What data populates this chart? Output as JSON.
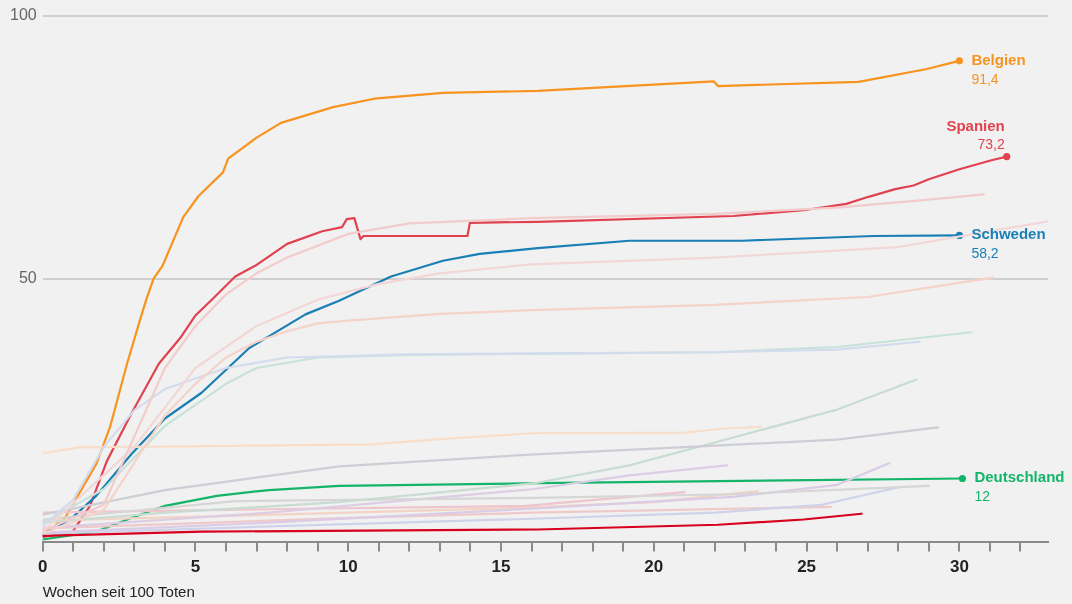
{
  "chart_data": {
    "type": "line",
    "xlabel": "Wochen seit 100 Toten",
    "xlim": [
      0,
      32.9
    ],
    "ylim": [
      0,
      100
    ],
    "yticks": [
      50,
      100
    ],
    "xticks": [
      0,
      {
        "value": 1,
        "label": null
      },
      {
        "value": 2,
        "label": null
      },
      {
        "value": 3,
        "label": null
      },
      {
        "value": 4,
        "label": null
      },
      5,
      {
        "value": 6,
        "label": null
      },
      {
        "value": 7,
        "label": null
      },
      {
        "value": 8,
        "label": null
      },
      {
        "value": 9,
        "label": null
      },
      10,
      {
        "value": 11,
        "label": null
      },
      {
        "value": 12,
        "label": null
      },
      {
        "value": 13,
        "label": null
      },
      {
        "value": 14,
        "label": null
      },
      15,
      {
        "value": 16,
        "label": null
      },
      {
        "value": 17,
        "label": null
      },
      {
        "value": 18,
        "label": null
      },
      {
        "value": 19,
        "label": null
      },
      20,
      {
        "value": 21,
        "label": null
      },
      {
        "value": 22,
        "label": null
      },
      {
        "value": 23,
        "label": null
      },
      {
        "value": 24,
        "label": null
      },
      25,
      {
        "value": 26,
        "label": null
      },
      {
        "value": 27,
        "label": null
      },
      {
        "value": 28,
        "label": null
      },
      {
        "value": 29,
        "label": null
      },
      30,
      {
        "value": 31,
        "label": null
      },
      {
        "value": 32,
        "label": null
      }
    ],
    "grid": "y",
    "legend": false,
    "series": [
      {
        "color": "#f2cccc",
        "x": [
          0,
          2,
          3,
          4,
          5,
          6,
          7,
          8,
          10,
          12,
          16,
          22,
          26,
          29,
          30.8
        ],
        "values": [
          2,
          7,
          20,
          33,
          41,
          47,
          51,
          54,
          58.5,
          60.5,
          61.5,
          62.3,
          63.5,
          65,
          66
        ]
      },
      {
        "color": "#f3d6d6",
        "x": [
          0,
          3,
          5,
          7,
          9,
          11,
          13,
          16,
          22,
          28,
          32.9
        ],
        "values": [
          2,
          18,
          33,
          41,
          46,
          49,
          51,
          52.7,
          54,
          56,
          60.9
        ]
      },
      {
        "color": "#f5d3c8",
        "x": [
          0,
          2,
          3,
          4,
          5,
          6,
          7,
          8,
          9,
          10,
          13,
          16,
          22,
          27,
          31.1
        ],
        "values": [
          1.5,
          6,
          15,
          24,
          30,
          35,
          38,
          40,
          41.5,
          42,
          43.3,
          44,
          45,
          46.5,
          50.2
        ]
      },
      {
        "color": "#d3dcec",
        "x": [
          0,
          1,
          2,
          3,
          4,
          5,
          6,
          8,
          12,
          16,
          22,
          26,
          28.7
        ],
        "values": [
          3,
          8,
          18,
          25,
          29,
          31,
          33,
          35,
          35.6,
          35.8,
          36,
          36.5,
          38
        ]
      },
      {
        "color": "#c6e2d9",
        "x": [
          0,
          2,
          3,
          4,
          5,
          6,
          7,
          9,
          12,
          16,
          22,
          26,
          30.4
        ],
        "values": [
          3.5,
          10,
          16,
          22,
          26,
          30,
          33,
          35,
          35.5,
          35.7,
          36,
          37,
          39.8
        ]
      },
      {
        "color": "#f8ddc8",
        "x": [
          0,
          1.2,
          10.8,
          13,
          16,
          21,
          22.3,
          23.5
        ],
        "values": [
          16.8,
          17.9,
          18.5,
          19.5,
          20.6,
          20.7,
          21.5,
          21.8
        ]
      },
      {
        "color": "#cdcdd5",
        "x": [
          0,
          4,
          9.7,
          16.1,
          21.5,
          26,
          29.3
        ],
        "values": [
          5.1,
          9.8,
          14.3,
          16.6,
          18.1,
          19.4,
          21.7
        ]
      },
      {
        "color": "#c8dcd1",
        "x": [
          0,
          4,
          9.7,
          16.1,
          19.2,
          22.6,
          26,
          28.6
        ],
        "values": [
          3.6,
          5.5,
          7.5,
          11.1,
          14.5,
          19.8,
          25.1,
          30.8
        ]
      },
      {
        "color": "#d6d6d6",
        "x": [
          0,
          6.3,
          16.1,
          22.6,
          29
        ],
        "values": [
          4.2,
          7.7,
          8.3,
          9,
          10.6
        ]
      },
      {
        "color": "#ddcde4",
        "x": [
          0,
          7.4,
          16.1,
          19.2,
          22.4
        ],
        "values": [
          2.6,
          5.5,
          10,
          12.6,
          14.5
        ]
      },
      {
        "color": "#dacbe6",
        "x": [
          0,
          7.4,
          15.8,
          22.6,
          26,
          27.7
        ],
        "values": [
          1.7,
          3.6,
          6.2,
          8.5,
          10.8,
          14.9
        ]
      },
      {
        "color": "#cfd3ea",
        "x": [
          0,
          8,
          15.8,
          22,
          25.5,
          27,
          28
        ],
        "values": [
          1.5,
          3,
          4.3,
          5.5,
          7,
          9,
          10.3
        ]
      },
      {
        "color": "#eec5cc",
        "x": [
          0,
          8,
          15.8,
          21
        ],
        "values": [
          5.5,
          6.2,
          6.8,
          9.4
        ]
      },
      {
        "color": "#f2d3c4",
        "x": [
          0,
          10,
          16,
          20,
          23.4
        ],
        "values": [
          4,
          5.5,
          6.5,
          7.5,
          9.6
        ]
      },
      {
        "color": "#efc9c9",
        "x": [
          0,
          10,
          16,
          25.8
        ],
        "values": [
          2.5,
          4.5,
          5.5,
          6.6
        ]
      },
      {
        "color": "#d7001e",
        "x": [
          0,
          5.2,
          16.2,
          22.1,
          24.9,
          26.8
        ],
        "values": [
          1.1,
          1.9,
          2.3,
          3.2,
          4.2,
          5.3
        ]
      },
      {
        "name": "Deutschland",
        "color": "#14b46a",
        "x": [
          0,
          1.75,
          2.9,
          4,
          5.7,
          7.4,
          9.7,
          16.2,
          30.1
        ],
        "values": [
          0.4,
          1.9,
          4.5,
          6.8,
          8.7,
          9.8,
          10.6,
          11.1,
          12
        ],
        "value_labels": [
          null,
          null,
          null,
          null,
          null,
          null,
          null,
          null,
          "12"
        ]
      },
      {
        "name": "Schweden",
        "color": "#1a7fb5",
        "x": [
          0,
          0.96,
          1.75,
          2.9,
          4,
          5.2,
          6.76,
          8.6,
          9.7,
          11.4,
          13.1,
          14.3,
          16.2,
          19.2,
          22.9,
          27.2,
          30
        ],
        "values": [
          1.3,
          4.5,
          8.7,
          16.6,
          23.4,
          28.3,
          36.8,
          43.2,
          45.8,
          50.4,
          53.4,
          54.7,
          55.8,
          57.2,
          57.2,
          58.1,
          58.2
        ],
        "value_labels": [
          null,
          null,
          null,
          null,
          null,
          null,
          null,
          null,
          null,
          null,
          null,
          null,
          null,
          null,
          null,
          null,
          "58,2"
        ]
      },
      {
        "name": "Spanien",
        "color": "#e0424f",
        "x": [
          0,
          0.96,
          1.55,
          2.1,
          2.9,
          3.8,
          4.5,
          5,
          5.5,
          6.3,
          7,
          8,
          9.15,
          9.8,
          9.95,
          10.2,
          10.4,
          10.5,
          13.9,
          13.98,
          16.2,
          22.6,
          24.9,
          26.3,
          27,
          27.9,
          28.5,
          29,
          30,
          31.05,
          31.55
        ],
        "values": [
          0.9,
          1.7,
          6.8,
          15.3,
          24.3,
          33.8,
          38.7,
          43,
          45.8,
          50.4,
          52.6,
          56.6,
          59,
          59.8,
          61.3,
          61.5,
          57.5,
          58.1,
          58.1,
          60.6,
          60.8,
          61.9,
          63,
          64.2,
          65.5,
          67,
          67.7,
          68.9,
          70.8,
          72.5,
          73.2
        ],
        "value_labels": [
          null,
          null,
          null,
          null,
          null,
          null,
          null,
          null,
          null,
          null,
          null,
          null,
          null,
          null,
          null,
          null,
          null,
          null,
          null,
          null,
          null,
          null,
          null,
          null,
          null,
          null,
          null,
          null,
          null,
          null,
          "73,2"
        ]
      },
      {
        "name": "Belgien",
        "color": "#f7931e",
        "x": [
          0,
          0.73,
          1.75,
          2.2,
          2.77,
          3.23,
          3.4,
          3.63,
          3.92,
          4.6,
          5.1,
          5.9,
          6.07,
          7,
          7.8,
          9.5,
          10.85,
          13.1,
          16.2,
          21.96,
          22.1,
          26.7,
          28.9,
          30
        ],
        "values": [
          1.3,
          4.5,
          14.7,
          21.7,
          34,
          43,
          46.2,
          50,
          52.4,
          61.7,
          65.7,
          70.2,
          72.8,
          76.8,
          79.6,
          82.6,
          84.2,
          85.3,
          85.7,
          87.5,
          86.6,
          87.4,
          89.8,
          91.4
        ],
        "value_labels": [
          null,
          null,
          null,
          null,
          null,
          null,
          null,
          null,
          null,
          null,
          null,
          null,
          null,
          null,
          null,
          null,
          null,
          null,
          null,
          null,
          null,
          null,
          null,
          "91,4"
        ]
      }
    ]
  }
}
